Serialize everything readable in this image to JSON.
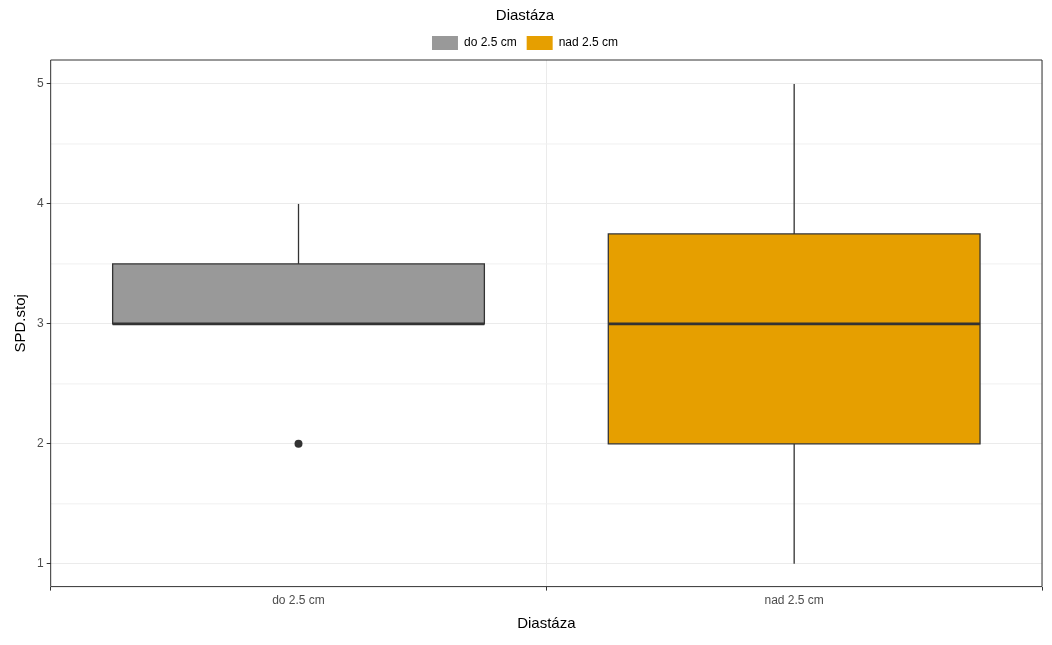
{
  "chart_data": {
    "type": "box",
    "xlabel": "Diastáza",
    "ylabel": "SPD.stoj",
    "legend_title": "Diastáza",
    "legend": "top",
    "grid": true,
    "categories": [
      "do 2.5 cm",
      "nad 2.5 cm"
    ],
    "series": [
      {
        "name": "do 2.5 cm",
        "color": "#999999",
        "boxes": [
          {
            "low": 3,
            "q1": 3,
            "median": 3,
            "q3": 3.5,
            "high": 4,
            "outliers": [
              2
            ]
          },
          null
        ]
      },
      {
        "name": "nad 2.5 cm",
        "color": "#e69f00",
        "boxes": [
          null,
          {
            "low": 1,
            "q1": 2,
            "median": 3,
            "q3": 3.75,
            "high": 5
          }
        ]
      }
    ],
    "ylim": [
      0.81,
      5.2
    ],
    "yticks": [
      1,
      2,
      3,
      4,
      5
    ]
  }
}
